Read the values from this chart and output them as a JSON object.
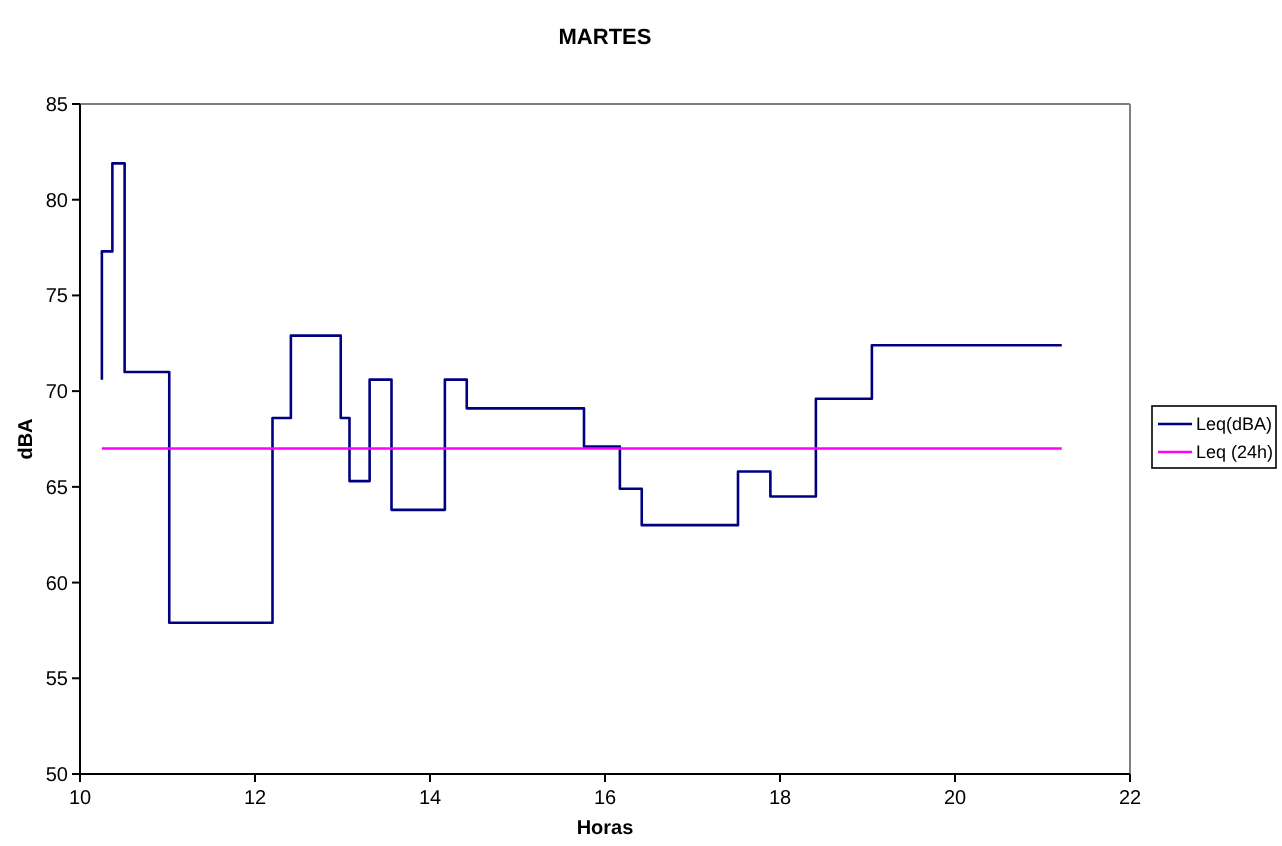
{
  "chart_data": {
    "type": "step",
    "title": "MARTES",
    "xlabel": "Horas",
    "ylabel": "dBA",
    "xlim": [
      10,
      22
    ],
    "xticks": [
      10,
      12,
      14,
      16,
      18,
      20,
      22
    ],
    "ylim": [
      50,
      85
    ],
    "yticks": [
      50,
      55,
      60,
      65,
      70,
      75,
      80,
      85
    ],
    "grid": false,
    "legend": "right",
    "series": [
      {
        "name": "Leq(dBA)",
        "color": "#000080",
        "x": [
          10.25,
          10.37,
          10.51,
          11.02,
          12.2,
          12.41,
          12.98,
          13.08,
          13.31,
          13.56,
          14.17,
          14.42,
          15.76,
          16.17,
          16.42,
          17.52,
          17.89,
          18.41,
          19.05,
          21.22
        ],
        "values": [
          70.6,
          77.3,
          81.9,
          71.0,
          57.9,
          68.6,
          72.9,
          68.6,
          65.3,
          70.6,
          63.8,
          70.6,
          69.1,
          67.1,
          64.9,
          63.0,
          65.8,
          64.5,
          69.6,
          72.4
        ]
      },
      {
        "name": "Leq (24h)",
        "type": "line",
        "color": "#ff00ff",
        "x": [
          10.25,
          21.22
        ],
        "values": [
          67.0,
          67.0
        ]
      }
    ]
  }
}
